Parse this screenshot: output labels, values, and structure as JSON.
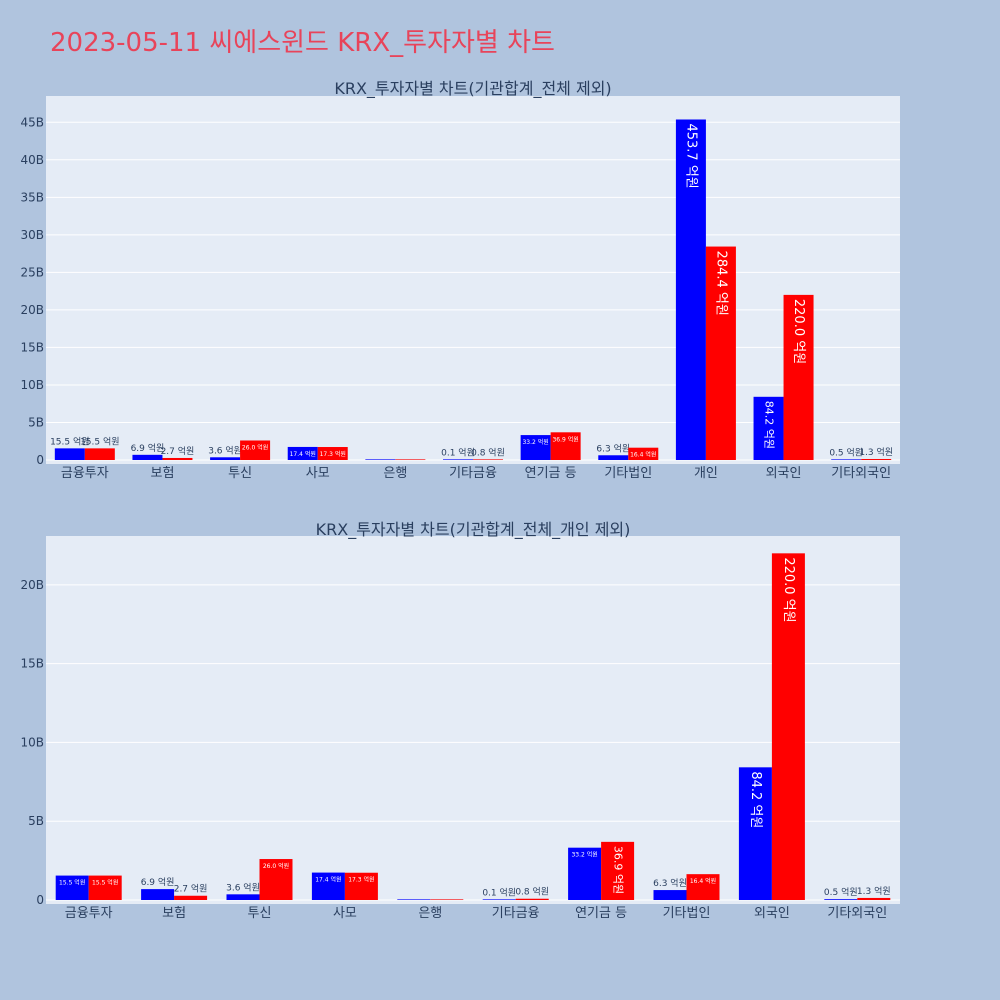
{
  "page": {
    "title": "2023-05-11 씨에스윈드 KRX_투자자별 차트",
    "background": "#b0c4de",
    "plot_background": "#e5ecf6",
    "title_color": "#e8445a"
  },
  "colors": {
    "series_a": "#0000ff",
    "series_b": "#ff0000"
  },
  "chart_data": [
    {
      "type": "bar",
      "title": "KRX_투자자별 차트(기관합계_전체 제외)",
      "categories": [
        "금융투자",
        "보험",
        "투신",
        "사모",
        "은행",
        "기타금융",
        "연기금 등",
        "기타법인",
        "개인",
        "외국인",
        "기타외국인"
      ],
      "series": [
        {
          "color": "#0000ff",
          "values": [
            1.55,
            0.69,
            0.36,
            1.74,
            0,
            0.01,
            3.32,
            0.63,
            45.37,
            8.42,
            0.05
          ],
          "labels": [
            "15.5 억원",
            "6.9 억원",
            "3.6 억원",
            "17.4 억원",
            "",
            "0.1 억원",
            "33.2 억원",
            "6.3 억원",
            "453.7 억원",
            "84.2 억원",
            "0.5 억원"
          ]
        },
        {
          "color": "#ff0000",
          "values": [
            1.55,
            0.27,
            2.6,
            1.73,
            0,
            0.08,
            3.69,
            1.64,
            28.44,
            22.0,
            0.13
          ],
          "labels": [
            "15.5 억원",
            "2.7 억원",
            "26.0 억원",
            "17.3 억원",
            "",
            "0.8 억원",
            "36.9 억원",
            "16.4 억원",
            "284.4 억원",
            "220.0 억원",
            "1.3 억원"
          ]
        }
      ],
      "yticks": [
        0,
        5,
        10,
        15,
        20,
        25,
        30,
        35,
        40,
        45
      ],
      "ytick_labels": [
        "0",
        "5B",
        "10B",
        "15B",
        "20B",
        "25B",
        "30B",
        "35B",
        "40B",
        "45B"
      ],
      "ylim": [
        0,
        48.5
      ],
      "grid": true,
      "legend": "none"
    },
    {
      "type": "bar",
      "title": "KRX_투자자별 차트(기관합계_전체_개인 제외)",
      "categories": [
        "금융투자",
        "보험",
        "투신",
        "사모",
        "은행",
        "기타금융",
        "연기금 등",
        "기타법인",
        "외국인",
        "기타외국인"
      ],
      "series": [
        {
          "color": "#0000ff",
          "values": [
            1.55,
            0.69,
            0.36,
            1.74,
            0,
            0.01,
            3.32,
            0.63,
            8.42,
            0.05
          ],
          "labels": [
            "15.5 억원",
            "6.9 억원",
            "3.6 억원",
            "17.4 억원",
            "",
            "0.1 억원",
            "33.2 억원",
            "6.3 억원",
            "84.2 억원",
            "0.5 억원"
          ]
        },
        {
          "color": "#ff0000",
          "values": [
            1.55,
            0.27,
            2.6,
            1.73,
            0,
            0.08,
            3.69,
            1.64,
            22.0,
            0.13
          ],
          "labels": [
            "15.5 억원",
            "2.7 억원",
            "26.0 억원",
            "17.3 억원",
            "",
            "0.8 억원",
            "36.9 억원",
            "16.4 억원",
            "220.0 억원",
            "1.3 억원"
          ]
        }
      ],
      "yticks": [
        0,
        5,
        10,
        15,
        20
      ],
      "ytick_labels": [
        "0",
        "5B",
        "10B",
        "15B",
        "20B"
      ],
      "ylim": [
        0,
        23.1
      ],
      "grid": true,
      "legend": "none"
    }
  ]
}
